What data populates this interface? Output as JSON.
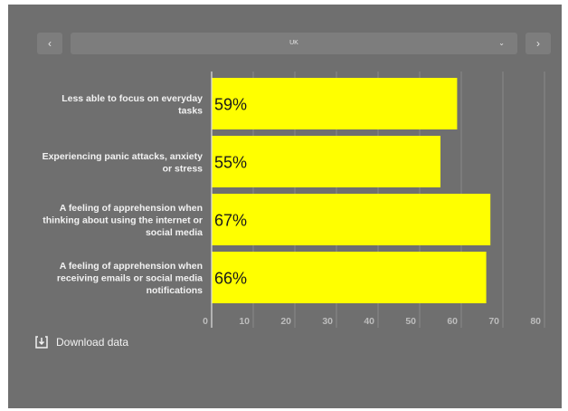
{
  "nav": {
    "prev_icon": "‹",
    "next_icon": "›"
  },
  "selector": {
    "value": "UK",
    "chevron_icon": "⌄"
  },
  "download": {
    "label": "Download data"
  },
  "colors": {
    "panel": "#6f6f6f",
    "bar": "#ffff00",
    "gridline": "#888888",
    "label": "#f2f2f2",
    "tick": "#bdbdbd"
  },
  "chart_data": {
    "type": "bar",
    "orientation": "horizontal",
    "categories": [
      [
        "Less able to focus on everyday",
        "tasks"
      ],
      [
        "Experiencing panic attacks, anxiety",
        "or stress"
      ],
      [
        "A feeling of apprehension when",
        "thinking about using the internet or",
        "social media"
      ],
      [
        "A feeling of apprehension when",
        "receiving emails or social media",
        "notifications"
      ]
    ],
    "values": [
      59,
      55,
      67,
      66
    ],
    "data_labels": [
      "59%",
      "55%",
      "67%",
      "66%"
    ],
    "xlim": [
      0,
      80
    ],
    "xticks": [
      0,
      10,
      20,
      30,
      40,
      50,
      60,
      70,
      80
    ],
    "grid": true,
    "legend": "none"
  }
}
